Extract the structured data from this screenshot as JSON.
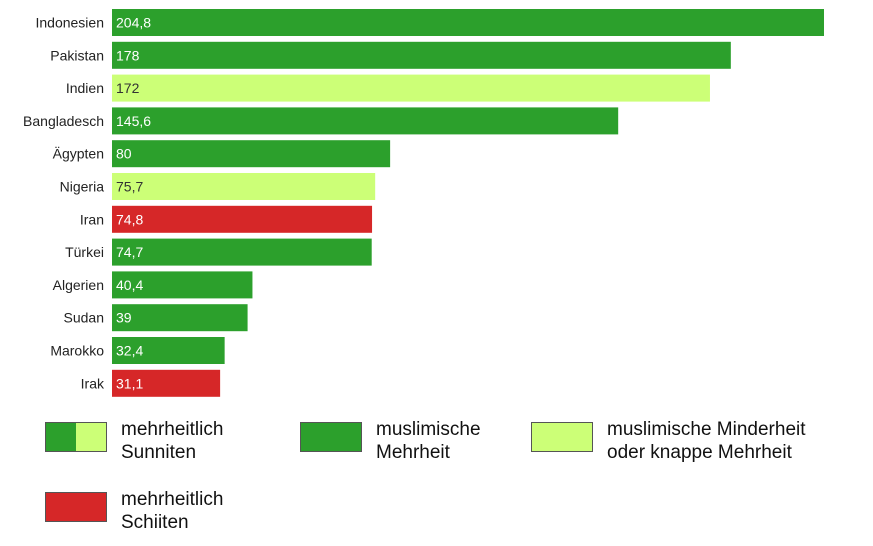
{
  "chart_data": {
    "type": "bar",
    "orientation": "horizontal",
    "categories": [
      "Indonesien",
      "Pakistan",
      "Indien",
      "Bangladesch",
      "Ägypten",
      "Nigeria",
      "Iran",
      "Türkei",
      "Algerien",
      "Sudan",
      "Marokko",
      "Irak"
    ],
    "values": [
      204.8,
      178,
      172,
      145.6,
      80,
      75.7,
      74.8,
      74.7,
      40.4,
      39,
      32.4,
      31.1
    ],
    "value_labels": [
      "204,8",
      "178",
      "172",
      "145,6",
      "80",
      "75,7",
      "74,8",
      "74,7",
      "40,4",
      "39",
      "32,4",
      "31,1"
    ],
    "bar_groups": [
      "mehrheit",
      "mehrheit",
      "minderheit",
      "mehrheit",
      "mehrheit",
      "minderheit",
      "schiiten",
      "mehrheit",
      "mehrheit",
      "mehrheit",
      "mehrheit",
      "schiiten"
    ],
    "xlim": [
      0,
      204.8
    ],
    "grid": false,
    "legend_position": "bottom"
  },
  "colors": {
    "mehrheit": "#2ca02c",
    "minderheit": "#ccff77",
    "schiiten": "#d62728"
  },
  "legend": {
    "sunniten": "mehrheitlich\nSunniten",
    "mehrheit": "muslimische\nMehrheit",
    "minderheit": "muslimische Minderheit\noder knappe Mehrheit",
    "schiiten": "mehrheitlich\nSchiiten"
  }
}
